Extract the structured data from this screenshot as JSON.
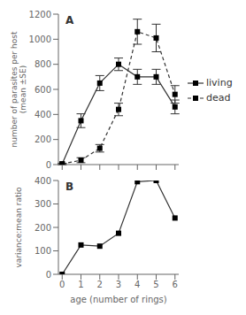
{
  "chart_data": [
    {
      "type": "line",
      "title": "A",
      "ylabel": "number of parasites per host\n(mean ±SE)",
      "x": [
        0,
        1,
        2,
        3,
        4,
        5,
        6
      ],
      "series": [
        {
          "name": "living",
          "color": "#333333",
          "line_style": "solid",
          "marker": "square",
          "values": [
            5,
            350,
            650,
            800,
            700,
            700,
            460
          ],
          "errors": [
            5,
            55,
            60,
            50,
            60,
            60,
            55
          ]
        },
        {
          "name": "dead",
          "color": "#333333",
          "line_style": "dashed",
          "marker": "square",
          "values": [
            5,
            35,
            130,
            440,
            1060,
            1010,
            560
          ],
          "errors": [
            5,
            20,
            30,
            50,
            100,
            110,
            70
          ]
        }
      ],
      "xlim": [
        -0.2,
        6.2
      ],
      "xticks": [
        0,
        1,
        2,
        3,
        4,
        5,
        6
      ],
      "ylim": [
        0,
        1200
      ],
      "yticks": [
        0,
        200,
        400,
        600,
        800,
        1000,
        1200
      ],
      "tick_labels": "y",
      "legend": "right",
      "grid": false
    },
    {
      "type": "line",
      "title": "B",
      "xlabel": "age (number of rings)",
      "ylabel": "variance:mean ratio",
      "x": [
        0,
        1,
        2,
        3,
        4,
        5,
        6
      ],
      "series": [
        {
          "color": "#333333",
          "line_style": "solid",
          "marker": "square",
          "values": [
            0,
            125,
            120,
            175,
            395,
            400,
            240
          ]
        }
      ],
      "xlim": [
        -0.2,
        6.2
      ],
      "xticks": [
        0,
        1,
        2,
        3,
        4,
        5,
        6
      ],
      "ylim": [
        0,
        400
      ],
      "yticks": [
        0,
        100,
        200,
        300,
        400
      ],
      "grid": false
    }
  ]
}
